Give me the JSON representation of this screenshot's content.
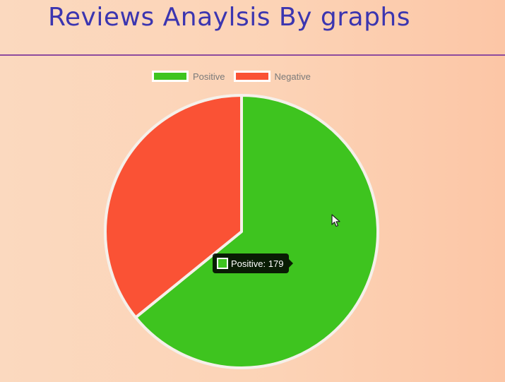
{
  "page": {
    "title": "Reviews Anaylsis By graphs"
  },
  "colors": {
    "title": "#3b35b0",
    "divider": "#8e4b9e",
    "positive": "#3ec41f",
    "negative": "#fa5235",
    "slice_border": "#f5f0ea"
  },
  "tooltip": {
    "text": "Positive: 179"
  },
  "chart_data": {
    "type": "pie",
    "title": "",
    "legend_position": "top",
    "categories": [
      "Positive",
      "Negative"
    ],
    "values": [
      179,
      100
    ],
    "colors": [
      "#3ec41f",
      "#fa5235"
    ]
  }
}
